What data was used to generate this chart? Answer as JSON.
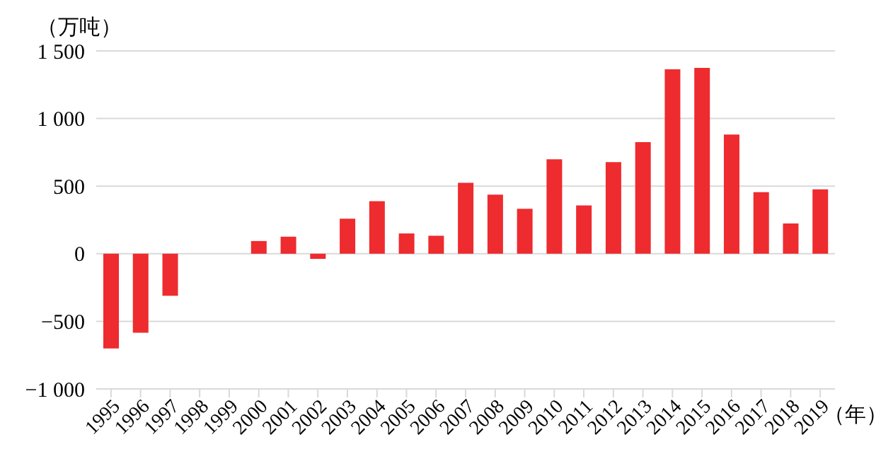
{
  "chart_data": {
    "type": "bar",
    "ylabel": "（万吨）",
    "xlabel": "（年）",
    "categories": [
      "1995",
      "1996",
      "1997",
      "1998",
      "1999",
      "2000",
      "2001",
      "2002",
      "2003",
      "2004",
      "2005",
      "2006",
      "2007",
      "2008",
      "2009",
      "2010",
      "2011",
      "2012",
      "2013",
      "2014",
      "2015",
      "2016",
      "2017",
      "2018",
      "2019"
    ],
    "values": [
      -700,
      -584,
      -311,
      0,
      0,
      94,
      126,
      -38,
      259,
      388,
      150,
      133,
      525,
      437,
      332,
      699,
      357,
      678,
      825,
      1364,
      1374,
      881,
      455,
      224,
      476
    ],
    "color": "#ee2b2e",
    "ylim": [
      -1000,
      1500
    ],
    "yticks": [
      {
        "value": -1000,
        "label": "−1 000"
      },
      {
        "value": -500,
        "label": "−500"
      },
      0,
      500,
      {
        "value": 1000,
        "label": "1 000"
      },
      {
        "value": 1500,
        "label": "1 500"
      }
    ],
    "grid": "y"
  }
}
